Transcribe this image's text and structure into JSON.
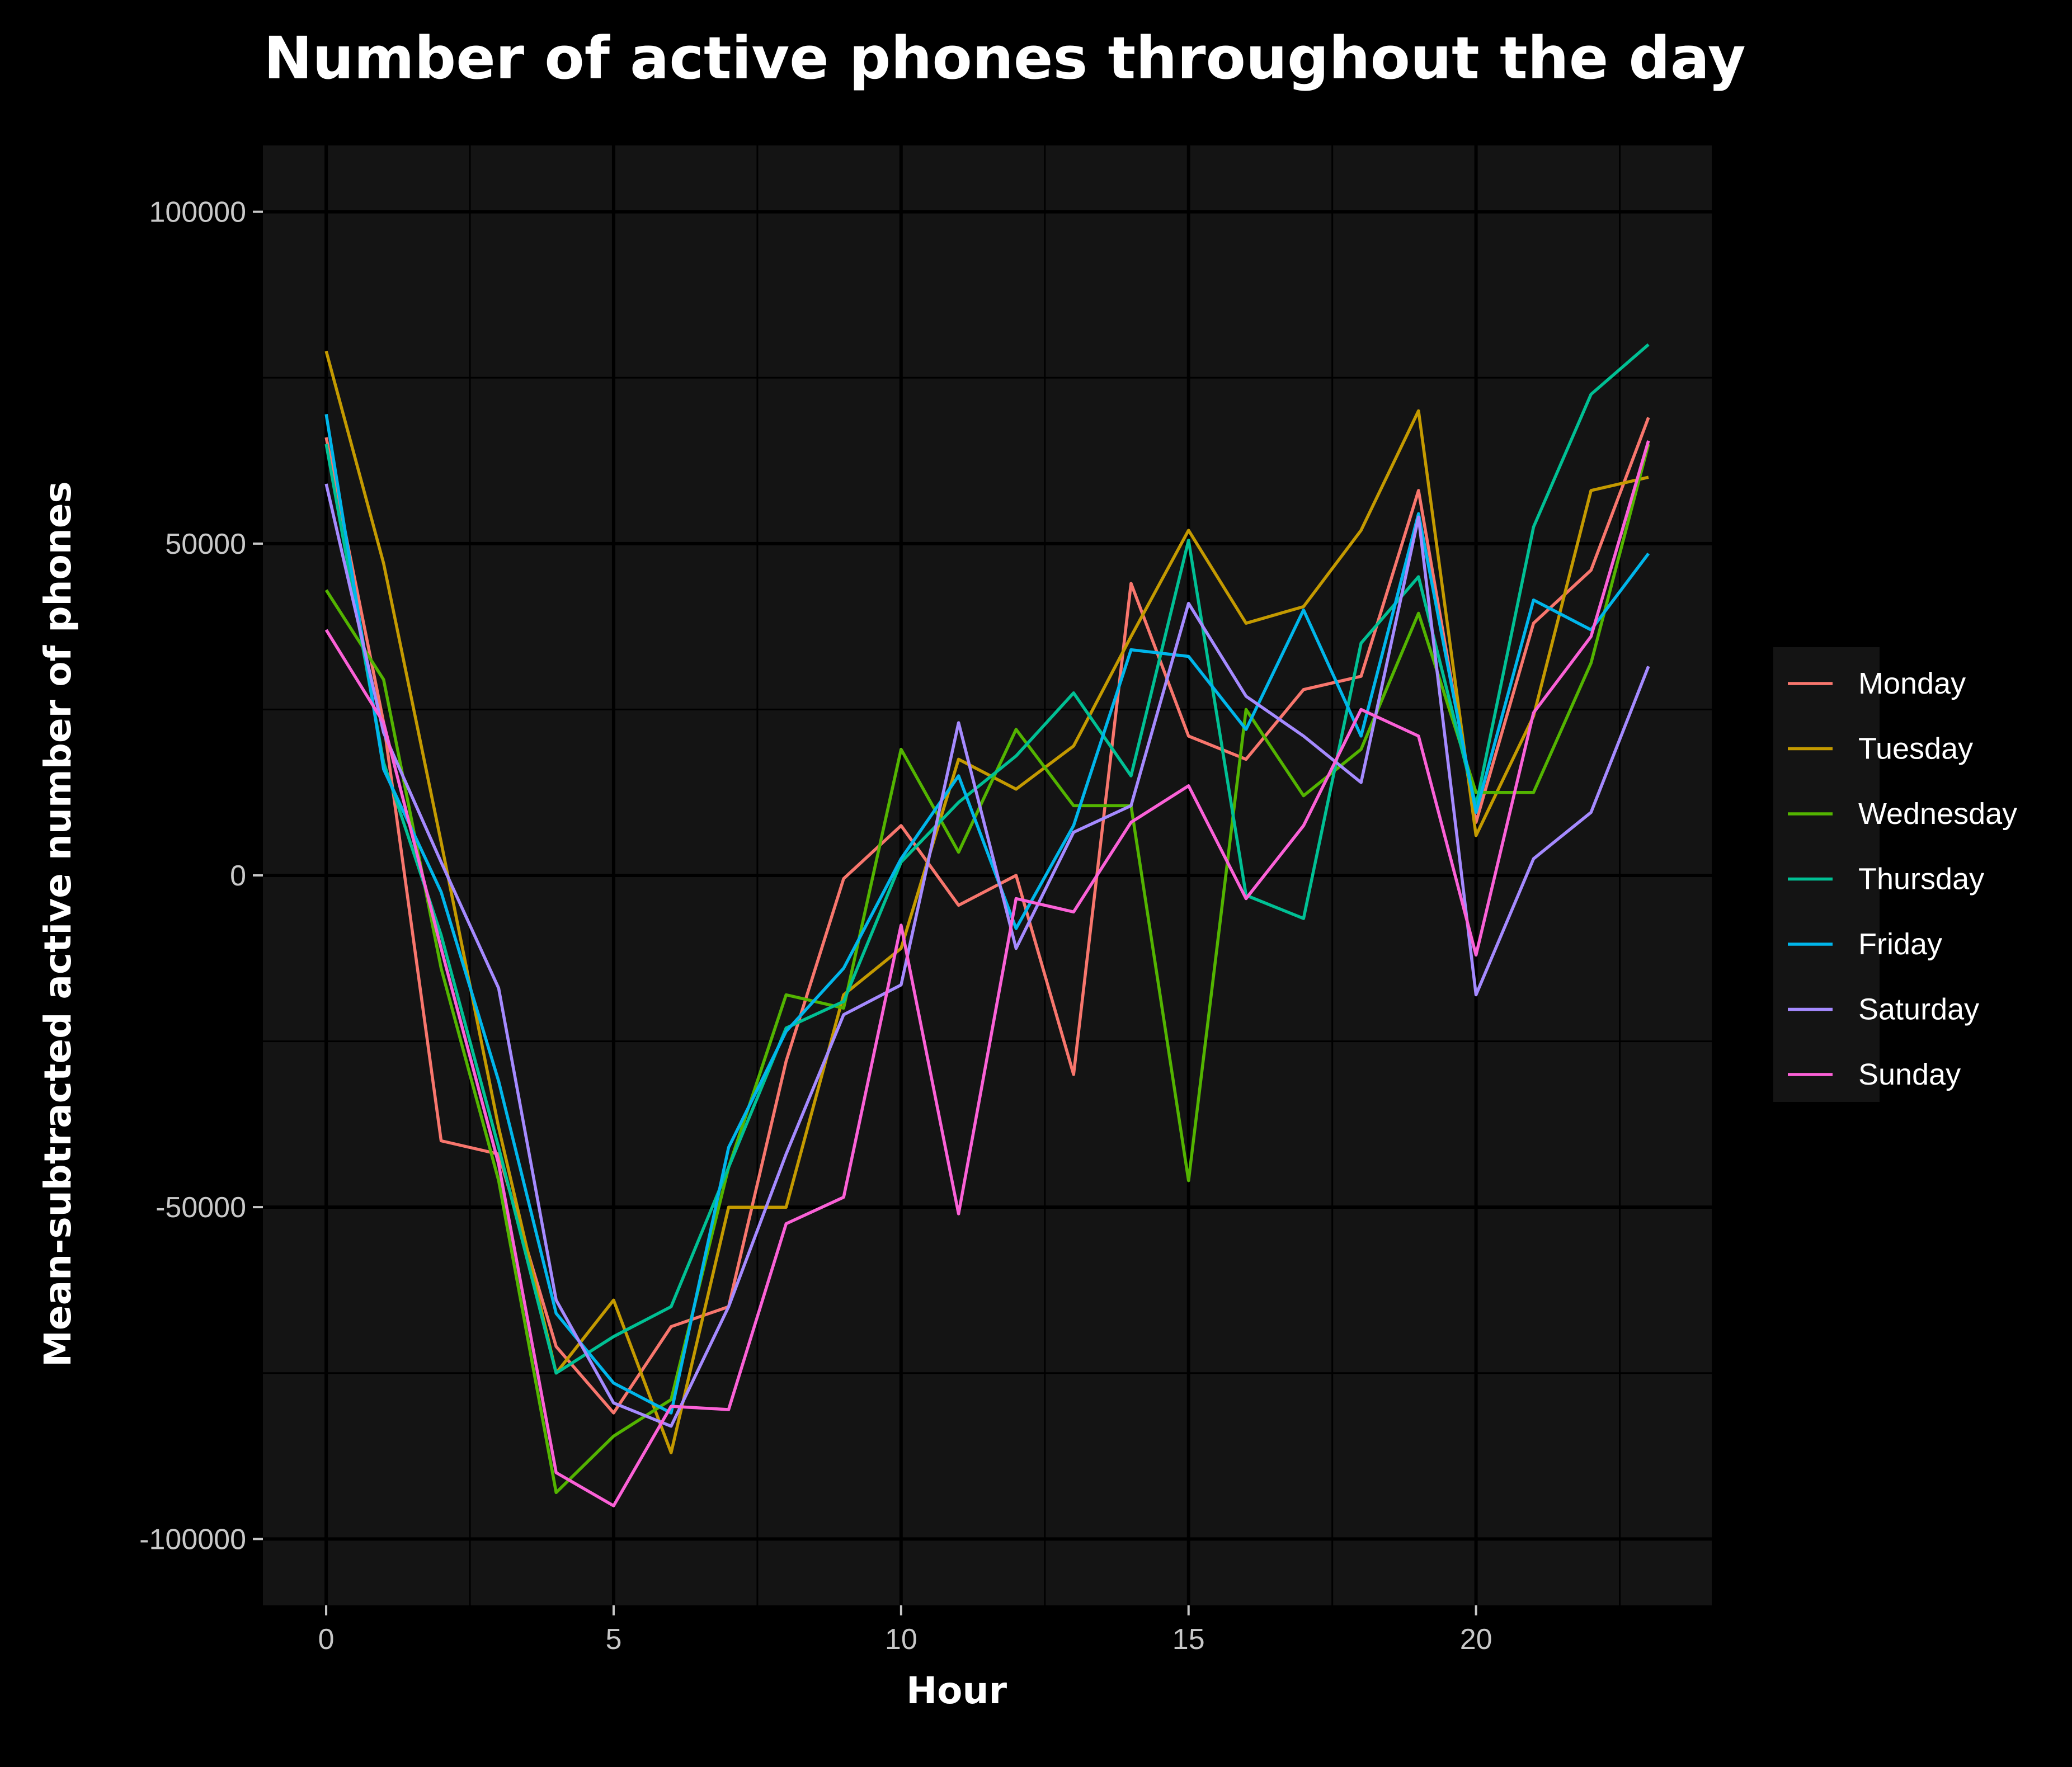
{
  "chart_data": {
    "type": "line",
    "title": "Number of active phones throughout the day",
    "xlabel": "Hour",
    "ylabel": "Mean-subtracted active number of phones",
    "xlim": [
      -1.1,
      24.1
    ],
    "ylim": [
      -110000,
      110000
    ],
    "x_ticks": [
      0,
      5,
      10,
      15,
      20
    ],
    "x_tick_labels": [
      "0",
      "5",
      "10",
      "15",
      "20"
    ],
    "y_ticks": [
      100000,
      50000,
      0,
      -50000,
      -100000
    ],
    "y_tick_labels": [
      "100000",
      "50000",
      "0",
      "-50000",
      "-100000"
    ],
    "grid": true,
    "legend_position": "right",
    "background": "#000000",
    "panel_color": "#141414",
    "x": [
      0,
      1,
      2,
      3,
      4,
      5,
      6,
      7,
      8,
      9,
      10,
      11,
      12,
      13,
      14,
      15,
      16,
      17,
      18,
      19,
      20,
      21,
      22,
      23
    ],
    "series": [
      {
        "name": "Monday",
        "color": "#F8766D",
        "values": [
          66000,
          23000,
          -40000,
          -42000,
          -71000,
          -81000,
          -68000,
          -65000,
          -28000,
          -500,
          7500,
          -4500,
          0,
          -30000,
          44000,
          21000,
          17500,
          28000,
          30000,
          58000,
          8000,
          38000,
          46000,
          69000
        ]
      },
      {
        "name": "Tuesday",
        "color": "#C49A00",
        "values": [
          79000,
          47000,
          5000,
          -38000,
          -75000,
          -64000,
          -87000,
          -50000,
          -50000,
          -18000,
          -11000,
          17500,
          13000,
          19500,
          36000,
          52000,
          38000,
          40500,
          52000,
          70000,
          6000,
          24000,
          58000,
          60000
        ]
      },
      {
        "name": "Wednesday",
        "color": "#53B400",
        "values": [
          43000,
          29500,
          -14000,
          -46000,
          -93000,
          -84500,
          -79000,
          -44000,
          -18000,
          -20000,
          19000,
          3500,
          22000,
          10500,
          10500,
          -46000,
          25000,
          12000,
          19000,
          39500,
          12500,
          12500,
          32000,
          65000
        ]
      },
      {
        "name": "Thursday",
        "color": "#00C094",
        "values": [
          65000,
          17000,
          -9000,
          -41000,
          -75000,
          -69500,
          -65000,
          -44000,
          -23000,
          -19000,
          2000,
          11000,
          18000,
          27500,
          15000,
          50500,
          -3000,
          -6500,
          35000,
          45000,
          10500,
          52500,
          72500,
          80000
        ]
      },
      {
        "name": "Friday",
        "color": "#00B6EB",
        "values": [
          69500,
          16000,
          -2500,
          -31000,
          -66000,
          -76500,
          -81000,
          -41000,
          -23500,
          -14000,
          2500,
          15000,
          -8000,
          7500,
          34000,
          33000,
          22000,
          40000,
          21000,
          54500,
          9500,
          41500,
          37000,
          48500
        ]
      },
      {
        "name": "Saturday",
        "color": "#A58AFF",
        "values": [
          59000,
          21500,
          2000,
          -17000,
          -64000,
          -79500,
          -83000,
          -65000,
          -42000,
          -21000,
          -16500,
          23000,
          -11000,
          6500,
          10500,
          41000,
          27000,
          21000,
          14000,
          54000,
          -18000,
          2500,
          9500,
          31500
        ]
      },
      {
        "name": "Sunday",
        "color": "#FB61D7",
        "values": [
          37000,
          23000,
          -11000,
          -43500,
          -90000,
          -95000,
          -80000,
          -80500,
          -52500,
          -48500,
          -7500,
          -51000,
          -3500,
          -5500,
          8000,
          13500,
          -3500,
          7500,
          25000,
          21000,
          -12000,
          24500,
          36000,
          65500
        ]
      }
    ]
  }
}
